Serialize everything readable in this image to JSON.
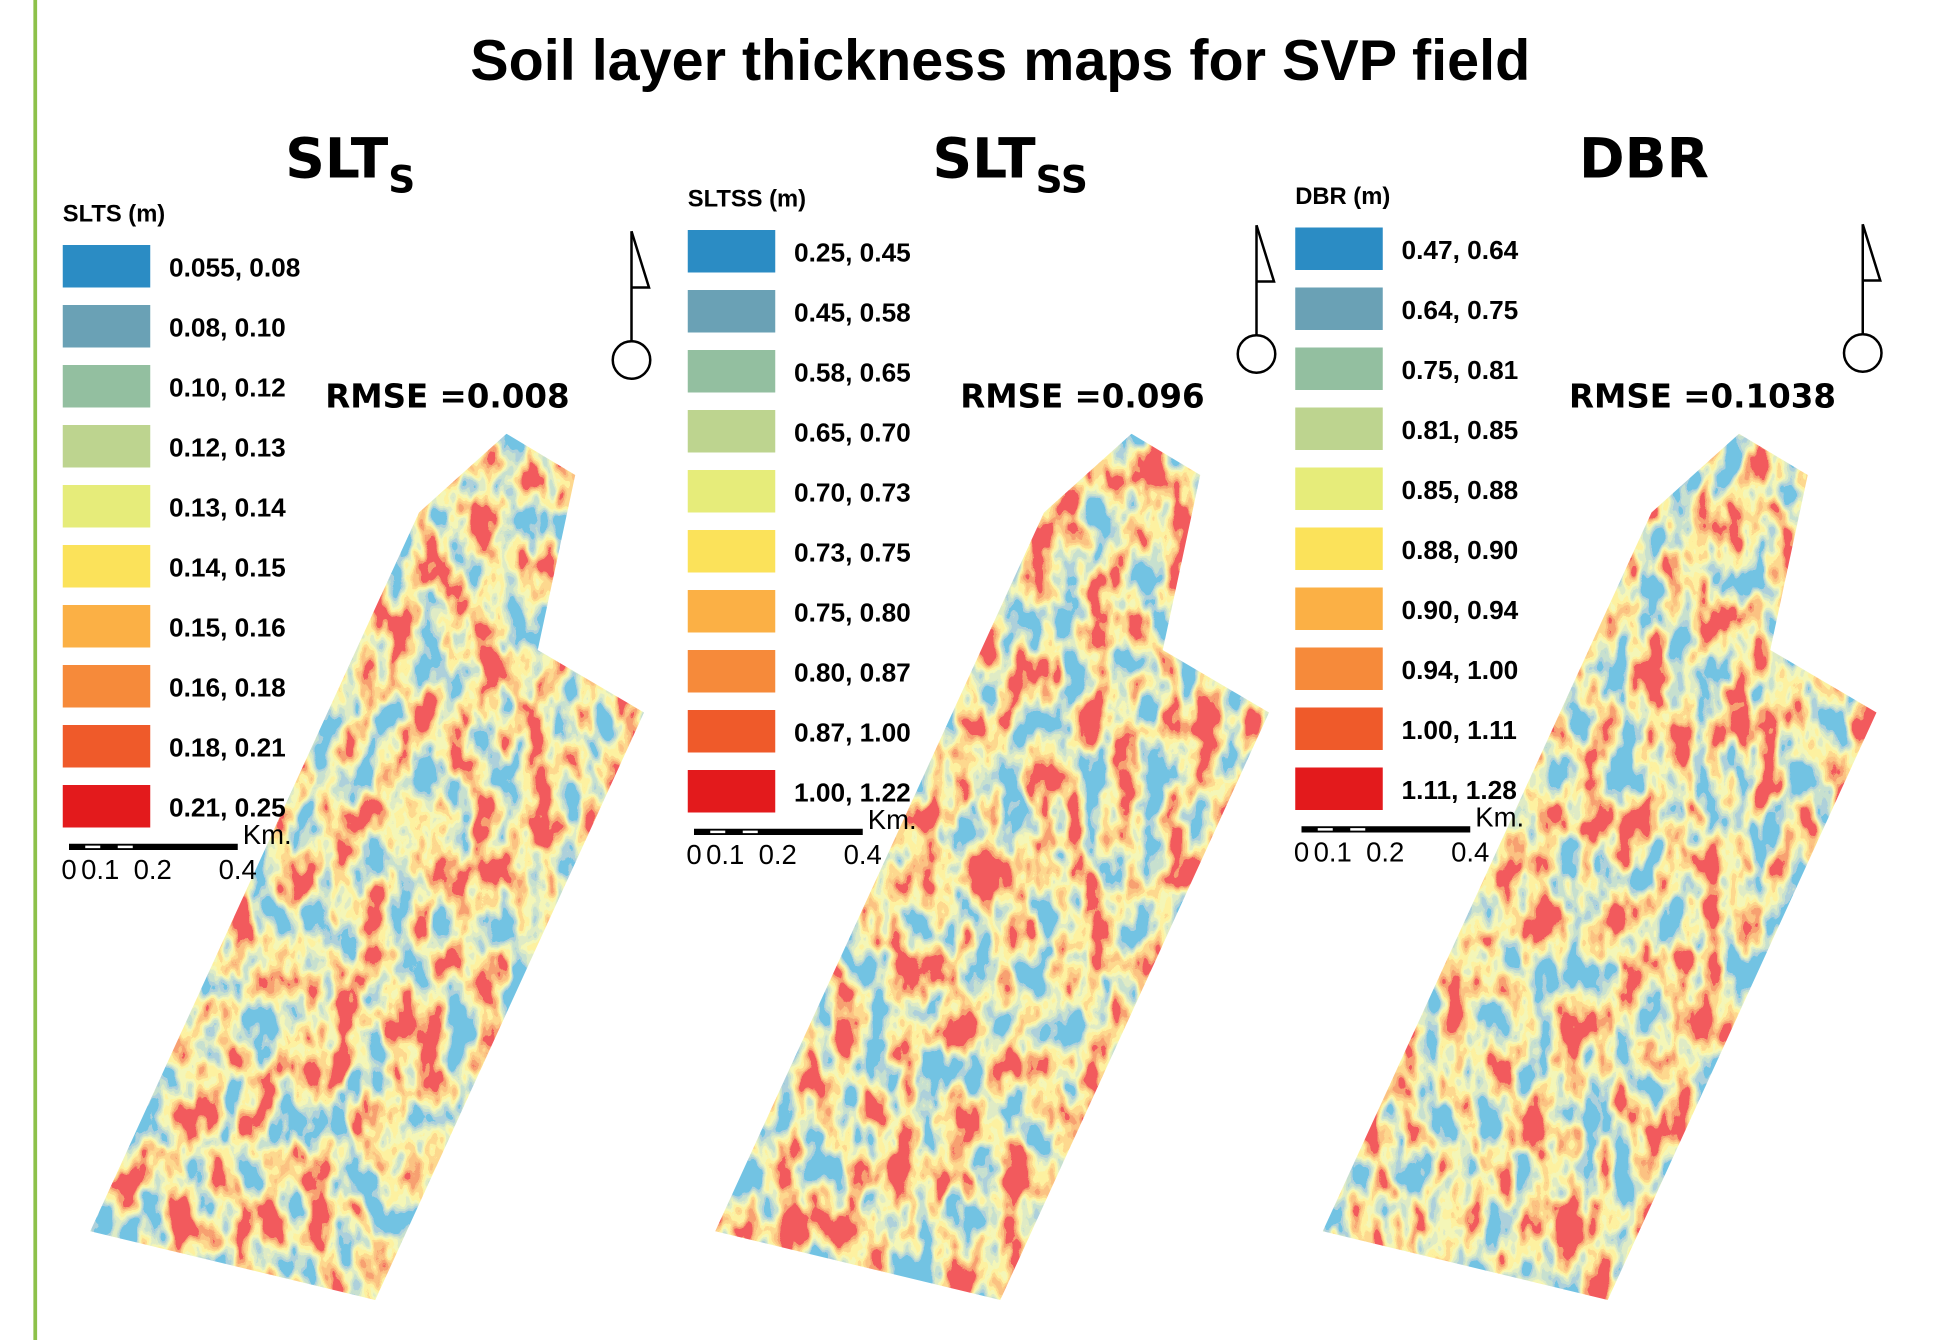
{
  "title": "Soil layer thickness maps for SVP field",
  "panels": [
    {
      "heading": {
        "text": "SLT",
        "subscript": "S"
      },
      "legend_title": "SLTS (m)",
      "classes": [
        "0.055, 0.08",
        "0.08, 0.10",
        "0.10, 0.12",
        "0.12, 0.13",
        "0.13, 0.14",
        "0.14, 0.15",
        "0.15, 0.16",
        "0.16, 0.18",
        "0.18, 0.21",
        "0.21, 0.25"
      ],
      "colors": [
        "#2b8cc4",
        "#6aa1b5",
        "#93bfa0",
        "#bdd48f",
        "#e6ec7a",
        "#fbe25a",
        "#fbb045",
        "#f68a3a",
        "#ef5a2a",
        "#e31a1c"
      ],
      "rmse": "RMSE =0.008",
      "scale_labels": [
        "0",
        "0.1",
        "0.2",
        "0.4"
      ],
      "scale_unit": "Km."
    },
    {
      "heading": {
        "text": "SLT",
        "subscript": "SS"
      },
      "legend_title": "SLTSS (m)",
      "classes": [
        "0.25, 0.45",
        "0.45, 0.58",
        "0.58, 0.65",
        "0.65, 0.70",
        "0.70, 0.73",
        "0.73, 0.75",
        "0.75, 0.80",
        "0.80, 0.87",
        "0.87, 1.00",
        "1.00, 1.22"
      ],
      "colors": [
        "#2b8cc4",
        "#6aa1b5",
        "#93bfa0",
        "#bdd48f",
        "#e6ec7a",
        "#fbe25a",
        "#fbb045",
        "#f68a3a",
        "#ef5a2a",
        "#e31a1c"
      ],
      "rmse": "RMSE =0.096",
      "scale_labels": [
        "0",
        "0.1",
        "0.2",
        "0.4"
      ],
      "scale_unit": "Km."
    },
    {
      "heading": {
        "text": "DBR"
      },
      "legend_title": "DBR (m)",
      "classes": [
        "0.47, 0.64",
        "0.64, 0.75",
        "0.75, 0.81",
        "0.81, 0.85",
        "0.85, 0.88",
        "0.88, 0.90",
        "0.90, 0.94",
        "0.94, 1.00",
        "1.00, 1.11",
        "1.11, 1.28"
      ],
      "colors": [
        "#2b8cc4",
        "#6aa1b5",
        "#93bfa0",
        "#bdd48f",
        "#e6ec7a",
        "#fbe25a",
        "#fbb045",
        "#f68a3a",
        "#ef5a2a",
        "#e31a1c"
      ],
      "rmse": "RMSE =0.1038",
      "scale_labels": [
        "0",
        "0.1",
        "0.2",
        "0.4"
      ],
      "scale_unit": "Km."
    }
  ]
}
